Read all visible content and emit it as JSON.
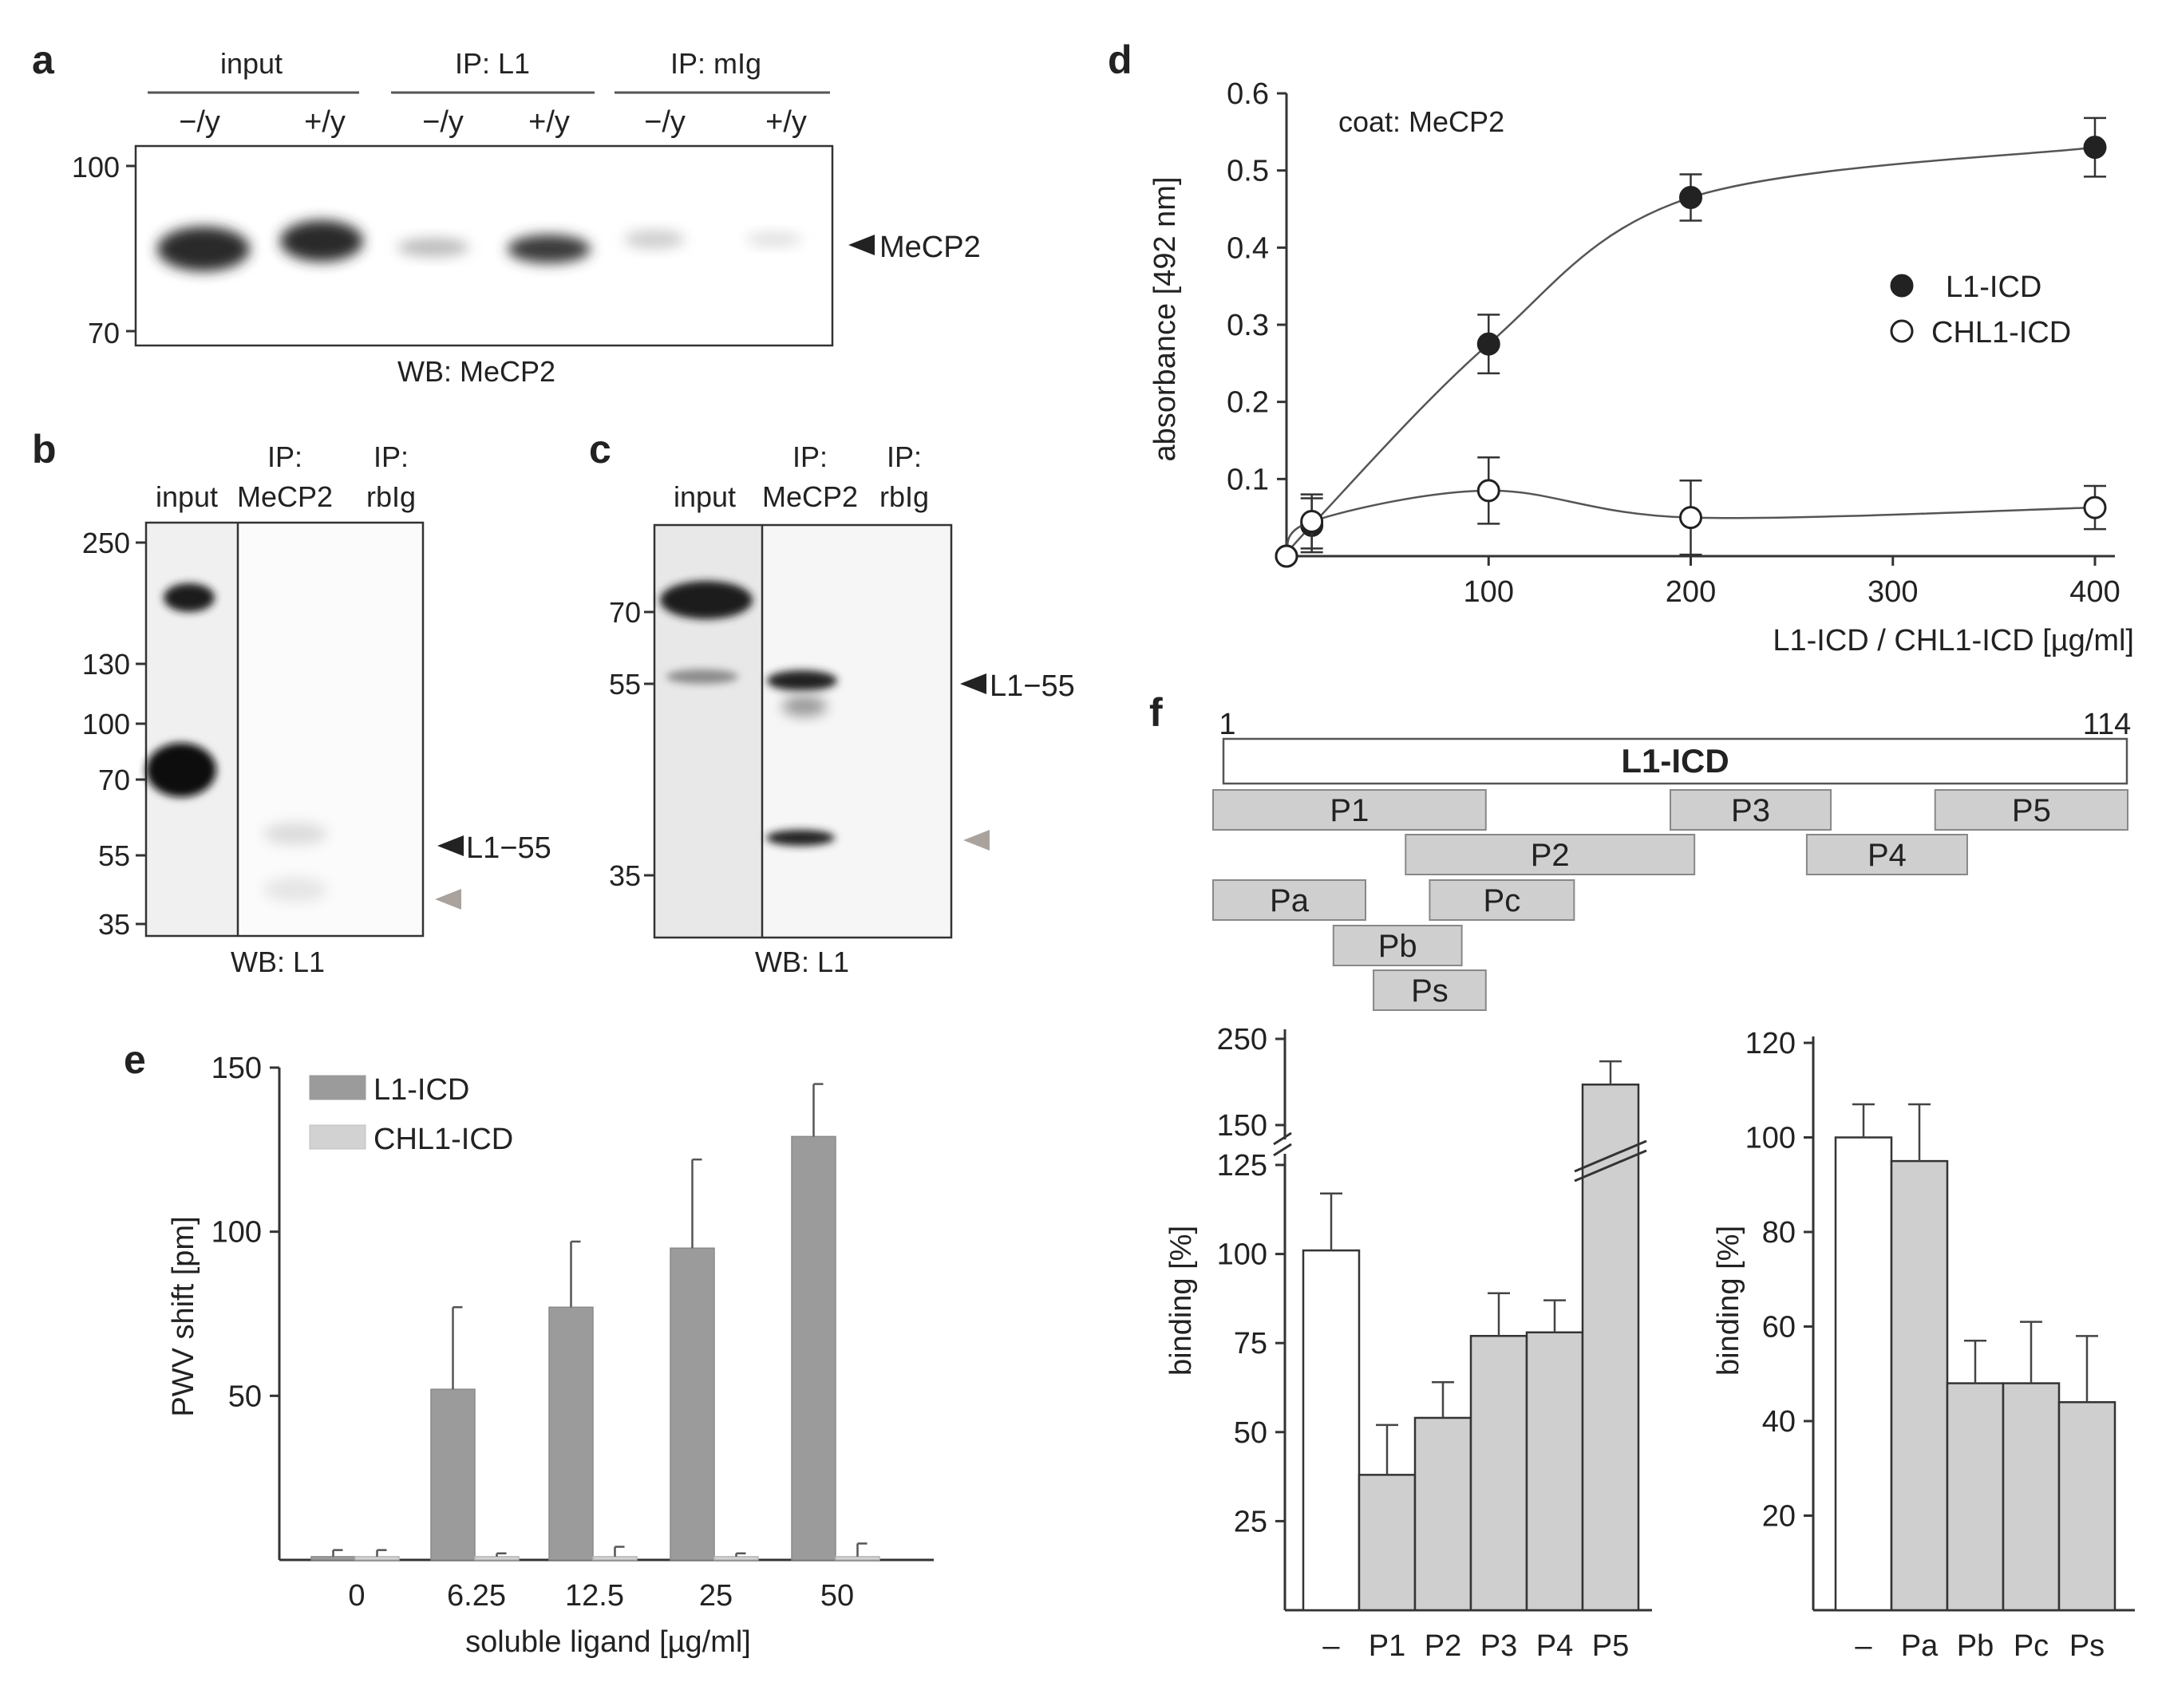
{
  "colors": {
    "l1": "#9b9b9b",
    "chl1": "#d2d2d2",
    "peptide": "#cfcfcf",
    "control": "#ffffff",
    "gel_bg": "#f4f4f4",
    "band": "#2b2b2b",
    "grey_arrow": "#aaa39d"
  },
  "panel_a": {
    "label": "a",
    "groups": [
      "input",
      "IP: L1",
      "IP: mIg"
    ],
    "lanes": [
      "−/y",
      "+/y",
      "−/y",
      "+/y",
      "−/y",
      "+/y"
    ],
    "markers": [
      "100",
      "70"
    ],
    "band_label": "MeCP2",
    "wb": "WB: MeCP2"
  },
  "panel_b": {
    "label": "b",
    "lanes": [
      "input",
      "IP:",
      "MeCP2",
      "IP:",
      "rbIg"
    ],
    "markers": [
      "250",
      "130",
      "100",
      "70",
      "55",
      "35"
    ],
    "band_label": "L1−55",
    "wb": "WB: L1"
  },
  "panel_c": {
    "label": "c",
    "lanes": [
      "input",
      "IP:",
      "MeCP2",
      "IP:",
      "rbIg"
    ],
    "markers": [
      "70",
      "55",
      "35"
    ],
    "band_label": "L1−55",
    "wb": "WB: L1"
  },
  "panel_d": {
    "label": "d",
    "annotation": "coat: MeCP2",
    "chart_data": {
      "type": "scatter",
      "title": "coat: MeCP2",
      "xlabel": "L1-ICD / CHL1-ICD [µg/ml]",
      "ylabel": "absorbance [492 nm]",
      "xlim": [
        0,
        400
      ],
      "ylim": [
        0,
        0.6
      ],
      "xticks": [
        "100",
        "200",
        "300",
        "400"
      ],
      "yticks": [
        "0.1",
        "0.2",
        "0.3",
        "0.4",
        "0.5",
        "0.6"
      ],
      "legend_position": "right",
      "series": [
        {
          "name": "L1-ICD",
          "marker": "filled-circle",
          "x": [
            0,
            12.5,
            100,
            200,
            400
          ],
          "y": [
            0.0,
            0.04,
            0.275,
            0.465,
            0.53
          ],
          "err": [
            0.0,
            0.035,
            0.038,
            0.03,
            0.038
          ]
        },
        {
          "name": "CHL1-ICD",
          "marker": "open-circle",
          "x": [
            0,
            12.5,
            100,
            200,
            400
          ],
          "y": [
            0.0,
            0.045,
            0.085,
            0.05,
            0.063
          ],
          "err": [
            0.0,
            0.035,
            0.043,
            0.048,
            0.028
          ]
        }
      ]
    }
  },
  "panel_e": {
    "label": "e",
    "chart_data": {
      "type": "bar",
      "xlabel": "soluble ligand [µg/ml]",
      "ylabel": "PWV shift [pm]",
      "ylim": [
        0,
        150
      ],
      "yticks": [
        "50",
        "100",
        "150"
      ],
      "categories": [
        "0",
        "6.25",
        "12.5",
        "25",
        "50"
      ],
      "legend_position": "top-left",
      "series": [
        {
          "name": "L1-ICD",
          "values": [
            1,
            52,
            77,
            95,
            129
          ],
          "err": [
            2,
            25,
            20,
            27,
            16
          ]
        },
        {
          "name": "CHL1-ICD",
          "values": [
            1,
            1,
            1,
            1,
            1
          ],
          "err": [
            2,
            1,
            3,
            1,
            4
          ]
        }
      ]
    }
  },
  "panel_f": {
    "label": "f",
    "map": {
      "start": "1",
      "end": "114",
      "title": "L1-ICD",
      "peptides": [
        {
          "name": "P1",
          "start": 0,
          "end": 34
        },
        {
          "name": "P3",
          "start": 57,
          "end": 77
        },
        {
          "name": "P5",
          "start": 90,
          "end": 114
        },
        {
          "name": "P2",
          "start": 24,
          "end": 60
        },
        {
          "name": "P4",
          "start": 74,
          "end": 94
        },
        {
          "name": "Pa",
          "start": 0,
          "end": 19
        },
        {
          "name": "Pc",
          "start": 27,
          "end": 45
        },
        {
          "name": "Pb",
          "start": 15,
          "end": 31
        },
        {
          "name": "Ps",
          "start": 20,
          "end": 34
        }
      ]
    },
    "chart_data": [
      {
        "type": "bar",
        "ylabel": "binding [%]",
        "broken_axis": true,
        "ylim": [
          0,
          250
        ],
        "yticks": [
          "25",
          "50",
          "75",
          "100",
          "125",
          "150",
          "250"
        ],
        "categories": [
          "–",
          "P1",
          "P2",
          "P3",
          "P4",
          "P5"
        ],
        "values": [
          101,
          38,
          54,
          77,
          78,
          197
        ],
        "err": [
          16,
          14,
          10,
          12,
          9,
          27
        ]
      },
      {
        "type": "bar",
        "ylabel": "binding [%]",
        "ylim": [
          0,
          120
        ],
        "yticks": [
          "20",
          "40",
          "60",
          "80",
          "100",
          "120"
        ],
        "categories": [
          "–",
          "Pa",
          "Pb",
          "Pc",
          "Ps"
        ],
        "values": [
          100,
          95,
          48,
          48,
          44
        ],
        "err": [
          7,
          12,
          9,
          13,
          14
        ]
      }
    ]
  }
}
